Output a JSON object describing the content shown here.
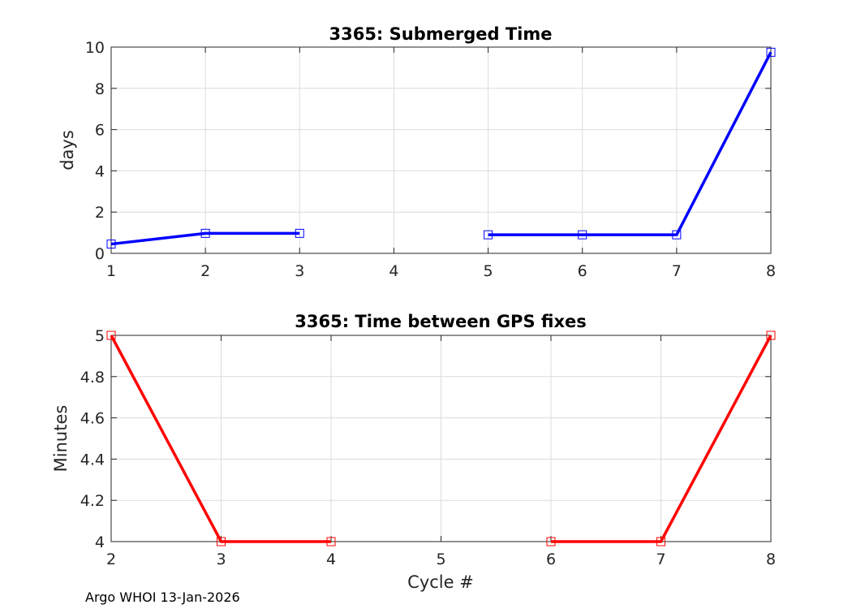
{
  "chart_data": [
    {
      "type": "line",
      "title": "3365: Submerged Time",
      "xlabel": "",
      "ylabel": "days",
      "xlim": [
        1,
        8
      ],
      "ylim": [
        0,
        10
      ],
      "xticks": [
        1,
        2,
        3,
        4,
        5,
        6,
        7,
        8
      ],
      "yticks": [
        0,
        2,
        4,
        6,
        8,
        10
      ],
      "grid": true,
      "color": "#0000ff",
      "marker": "square",
      "series": [
        {
          "x": [
            1,
            2,
            3
          ],
          "y": [
            0.45,
            0.97,
            0.97
          ]
        },
        {
          "x": [
            5,
            6,
            7,
            8
          ],
          "y": [
            0.9,
            0.9,
            0.9,
            9.75
          ]
        }
      ]
    },
    {
      "type": "line",
      "title": "3365: Time between GPS fixes",
      "xlabel": "Cycle #",
      "ylabel": "Minutes",
      "xlim": [
        2,
        8
      ],
      "ylim": [
        4,
        5
      ],
      "xticks": [
        2,
        3,
        4,
        5,
        6,
        7,
        8
      ],
      "yticks": [
        4,
        4.2,
        4.4,
        4.6,
        4.8,
        5
      ],
      "grid": true,
      "color": "#ff0000",
      "marker": "square",
      "series": [
        {
          "x": [
            2,
            3,
            4
          ],
          "y": [
            5,
            4,
            4
          ]
        },
        {
          "x": [
            6,
            7,
            8
          ],
          "y": [
            4,
            4,
            5
          ]
        }
      ]
    }
  ],
  "footer": "Argo WHOI 13-Jan-2026"
}
